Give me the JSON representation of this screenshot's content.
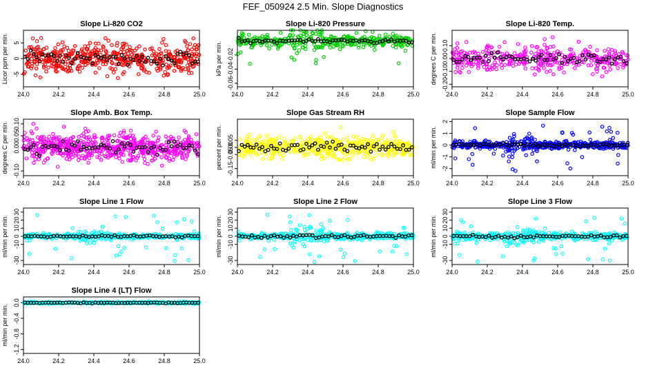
{
  "figure": {
    "title": "FEF_050924  2.5 Min. Slope Diagnostics"
  },
  "chart_data": [
    {
      "type": "scatter",
      "title": "Slope Li-820 CO2",
      "ylabel": "Licor ppm per min.",
      "xlim": [
        24.0,
        25.0
      ],
      "ylim": [
        -9,
        9
      ],
      "xticks": [
        24.0,
        24.2,
        24.4,
        24.6,
        24.8,
        25.0
      ],
      "xtick_labels": [
        "24.0",
        "24.2",
        "24.4",
        "24.6",
        "24.8",
        "25.0"
      ],
      "yticks": [
        -5,
        0,
        5
      ],
      "ytick_labels": [
        "-5",
        "0",
        "5"
      ],
      "color": "#ff0000",
      "overlay_color": "#000000",
      "spread": 4.0,
      "points": 500,
      "overlay_points": 60,
      "spike_fraction": 0.0
    },
    {
      "type": "scatter",
      "title": "Slope Li-820 Pressure",
      "ylabel": "kPa per min.",
      "xlim": [
        24.0,
        25.0
      ],
      "ylim": [
        -0.065,
        0.015
      ],
      "xticks": [
        24.0,
        24.2,
        24.4,
        24.6,
        24.8,
        25.0
      ],
      "xtick_labels": [
        "24.0",
        "24.2",
        "24.4",
        "24.6",
        "24.8",
        "25.0"
      ],
      "yticks": [
        -0.06,
        -0.04,
        -0.02
      ],
      "ytick_labels": [
        "-0.06",
        "-0.04",
        "-0.02"
      ],
      "color": "#00cc00",
      "overlay_color": "#000000",
      "spread": 0.007,
      "points": 400,
      "overlay_points": 60,
      "spike_fraction": 0.02
    },
    {
      "type": "scatter",
      "title": "Slope Li-820 Temp.",
      "ylabel": "degrees C per min.",
      "xlim": [
        24.0,
        25.0
      ],
      "ylim": [
        -0.22,
        0.22
      ],
      "xticks": [
        24.0,
        24.2,
        24.4,
        24.6,
        24.8,
        25.0
      ],
      "xtick_labels": [
        "24.0",
        "24.2",
        "24.4",
        "24.6",
        "24.8",
        "25.0"
      ],
      "yticks": [
        -0.2,
        -0.1,
        0.0,
        0.1
      ],
      "ytick_labels": [
        "-0.20",
        "-0.10",
        "0.00",
        "0.10"
      ],
      "color": "#ff00ff",
      "overlay_color": "#000000",
      "spread": 0.08,
      "points": 400,
      "overlay_points": 60,
      "spike_fraction": 0.0
    },
    {
      "type": "scatter",
      "title": "Slope Amb. Box Temp.",
      "ylabel": "degrees C per min.",
      "xlim": [
        24.0,
        25.0
      ],
      "ylim": [
        -0.12,
        0.12
      ],
      "xticks": [
        24.0,
        24.2,
        24.4,
        24.6,
        24.8,
        25.0
      ],
      "xtick_labels": [
        "24.0",
        "24.2",
        "24.4",
        "24.6",
        "24.8",
        "25.0"
      ],
      "yticks": [
        -0.1,
        0.0,
        0.05,
        0.1
      ],
      "ytick_labels": [
        "-0.10",
        "0.00",
        "0.05",
        "0.10"
      ],
      "color": "#ff00ff",
      "overlay_color": "#000000",
      "spread": 0.05,
      "points": 600,
      "overlay_points": 60,
      "spike_fraction": 0.0
    },
    {
      "type": "scatter",
      "title": "Slope Gas Stream RH",
      "ylabel": "percent per min.",
      "xlim": [
        24.0,
        25.0
      ],
      "ylim": [
        -0.2,
        0.2
      ],
      "xticks": [
        24.0,
        24.2,
        24.4,
        24.6,
        24.8,
        25.0
      ],
      "xtick_labels": [
        "24.0",
        "24.2",
        "24.4",
        "24.6",
        "24.8",
        "25.0"
      ],
      "yticks": [
        -0.15,
        -0.05,
        0.0,
        0.05
      ],
      "ytick_labels": [
        "-0.15",
        "-0.05",
        "0.00",
        "0.05"
      ],
      "color": "#ffff00",
      "overlay_color": "#000000",
      "spread": 0.06,
      "points": 500,
      "overlay_points": 60,
      "spike_fraction": 0.0
    },
    {
      "type": "scatter",
      "title": "Slope Sample Flow",
      "ylabel": "ml/min per min.",
      "xlim": [
        24.0,
        25.0
      ],
      "ylim": [
        -2.6,
        2.2
      ],
      "xticks": [
        24.0,
        24.2,
        24.4,
        24.6,
        24.8,
        25.0
      ],
      "xtick_labels": [
        "24.0",
        "24.2",
        "24.4",
        "24.6",
        "24.8",
        "25.0"
      ],
      "yticks": [
        -2,
        -1,
        0,
        1,
        2
      ],
      "ytick_labels": [
        "-2",
        "-1",
        "0",
        "1",
        "2"
      ],
      "color": "#0000ff",
      "overlay_color": "#000000",
      "spread": 0.25,
      "points": 500,
      "overlay_points": 60,
      "spike_fraction": 0.08
    },
    {
      "type": "scatter",
      "title": "Slope Line 1 Flow",
      "ylabel": "ml/min per min.",
      "xlim": [
        24.0,
        25.0
      ],
      "ylim": [
        -35,
        35
      ],
      "xticks": [
        24.0,
        24.2,
        24.4,
        24.6,
        24.8,
        25.0
      ],
      "xtick_labels": [
        "24.0",
        "24.2",
        "24.4",
        "24.6",
        "24.8",
        "25.0"
      ],
      "yticks": [
        -30,
        -10,
        0,
        10,
        20,
        30
      ],
      "ytick_labels": [
        "-30",
        "-10",
        "0",
        "10",
        "20",
        "30"
      ],
      "color": "#00ffff",
      "overlay_color": "#000000",
      "spread": 2.5,
      "points": 400,
      "overlay_points": 55,
      "spike_fraction": 0.08
    },
    {
      "type": "scatter",
      "title": "Slope Line 2 Flow",
      "ylabel": "ml/min per min.",
      "xlim": [
        24.0,
        25.0
      ],
      "ylim": [
        -35,
        35
      ],
      "xticks": [
        24.0,
        24.2,
        24.4,
        24.6,
        24.8,
        25.0
      ],
      "xtick_labels": [
        "24.0",
        "24.2",
        "24.4",
        "24.6",
        "24.8",
        "25.0"
      ],
      "yticks": [
        -30,
        -10,
        0,
        10,
        20,
        30
      ],
      "ytick_labels": [
        "-30",
        "-10",
        "0",
        "10",
        "20",
        "30"
      ],
      "color": "#00ffff",
      "overlay_color": "#000000",
      "spread": 3.5,
      "points": 450,
      "overlay_points": 55,
      "spike_fraction": 0.08
    },
    {
      "type": "scatter",
      "title": "Slope Line 3 Flow",
      "ylabel": "ml/min per min.",
      "xlim": [
        24.0,
        25.0
      ],
      "ylim": [
        -35,
        35
      ],
      "xticks": [
        24.0,
        24.2,
        24.4,
        24.6,
        24.8,
        25.0
      ],
      "xtick_labels": [
        "24.0",
        "24.2",
        "24.4",
        "24.6",
        "24.8",
        "25.0"
      ],
      "yticks": [
        -30,
        -10,
        0,
        10,
        20,
        30
      ],
      "ytick_labels": [
        "-30",
        "-10",
        "0",
        "10",
        "20",
        "30"
      ],
      "color": "#00ffff",
      "overlay_color": "#000000",
      "spread": 3.5,
      "points": 450,
      "overlay_points": 55,
      "spike_fraction": 0.08
    },
    {
      "type": "scatter",
      "title": "Slope Line 4 (LT) Flow",
      "ylabel": "ml/min per min.",
      "xlim": [
        24.0,
        25.0
      ],
      "ylim": [
        -1.3,
        0.15
      ],
      "xticks": [
        24.0,
        24.2,
        24.4,
        24.6,
        24.8,
        25.0
      ],
      "xtick_labels": [
        "24.0",
        "24.2",
        "24.4",
        "24.6",
        "24.8",
        "25.0"
      ],
      "yticks": [
        -1.2,
        -0.8,
        -0.4,
        0.0
      ],
      "ytick_labels": [
        "-1.2",
        "-0.8",
        "-0.4",
        "0.0"
      ],
      "color": "#00ffff",
      "overlay_color": "#000000",
      "spread": 0.02,
      "points": 400,
      "overlay_points": 60,
      "spike_fraction": 0.0
    }
  ]
}
